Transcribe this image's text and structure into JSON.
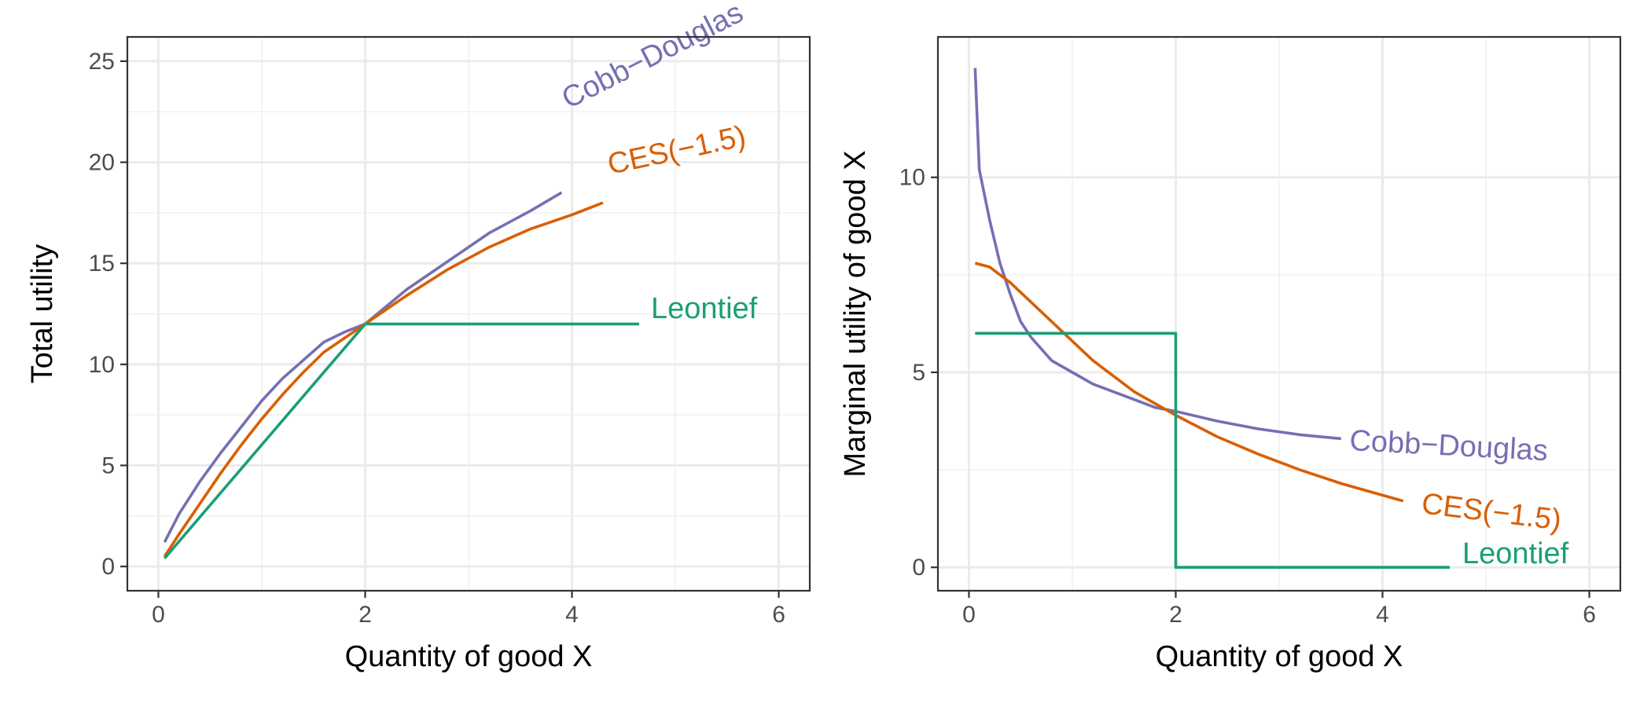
{
  "chart_data": [
    {
      "type": "line",
      "xlabel": "Quantity of good X",
      "ylabel": "Total utility",
      "xlim": [
        -0.3,
        6.3
      ],
      "ylim": [
        -1.2,
        26.2
      ],
      "x_ticks": [
        0,
        2,
        4,
        6
      ],
      "x_tick_labels": [
        "0",
        "2",
        "4",
        "6"
      ],
      "y_ticks": [
        0,
        5,
        10,
        15,
        20,
        25
      ],
      "y_tick_labels": [
        "0",
        "5",
        "10",
        "15",
        "20",
        "25"
      ],
      "grid": true,
      "legend": "direct labels at line ends",
      "series": [
        {
          "name": "Cobb−Douglas",
          "color": "#7570b3",
          "label_angle": -27,
          "points": [
            [
              0.06,
              1.2
            ],
            [
              0.2,
              2.6
            ],
            [
              0.4,
              4.2
            ],
            [
              0.6,
              5.6
            ],
            [
              0.8,
              6.9
            ],
            [
              1.0,
              8.2
            ],
            [
              1.2,
              9.3
            ],
            [
              1.4,
              10.2
            ],
            [
              1.6,
              11.1
            ],
            [
              1.8,
              11.6
            ],
            [
              2.0,
              12.0
            ],
            [
              2.4,
              13.7
            ],
            [
              2.8,
              15.1
            ],
            [
              3.2,
              16.5
            ],
            [
              3.6,
              17.6
            ],
            [
              3.9,
              18.5
            ]
          ]
        },
        {
          "name": "CES(−1.5)",
          "color": "#d95f02",
          "label_angle": -12,
          "points": [
            [
              0.06,
              0.5
            ],
            [
              0.2,
              1.6
            ],
            [
              0.4,
              3.1
            ],
            [
              0.6,
              4.6
            ],
            [
              0.8,
              6.0
            ],
            [
              1.0,
              7.3
            ],
            [
              1.2,
              8.5
            ],
            [
              1.4,
              9.6
            ],
            [
              1.6,
              10.6
            ],
            [
              1.8,
              11.3
            ],
            [
              2.0,
              12.0
            ],
            [
              2.4,
              13.4
            ],
            [
              2.8,
              14.7
            ],
            [
              3.2,
              15.8
            ],
            [
              3.6,
              16.7
            ],
            [
              4.0,
              17.4
            ],
            [
              4.3,
              18.0
            ]
          ]
        },
        {
          "name": "Leontief",
          "color": "#1b9e77",
          "label_angle": 0,
          "points": [
            [
              0.06,
              0.4
            ],
            [
              2.0,
              12.0
            ],
            [
              4.65,
              12.0
            ]
          ]
        }
      ]
    },
    {
      "type": "line",
      "xlabel": "Quantity of good X",
      "ylabel": "Marginal utility of good X",
      "xlim": [
        -0.3,
        6.3
      ],
      "ylim": [
        -0.6,
        13.6
      ],
      "x_ticks": [
        0,
        2,
        4,
        6
      ],
      "x_tick_labels": [
        "0",
        "2",
        "4",
        "6"
      ],
      "y_ticks": [
        0,
        5,
        10
      ],
      "y_tick_labels": [
        "0",
        "5",
        "10"
      ],
      "grid": true,
      "legend": "direct labels at line ends",
      "series": [
        {
          "name": "Cobb−Douglas",
          "color": "#7570b3",
          "label_angle": 3,
          "points": [
            [
              0.06,
              12.8
            ],
            [
              0.1,
              10.2
            ],
            [
              0.2,
              8.9
            ],
            [
              0.3,
              7.8
            ],
            [
              0.4,
              7.0
            ],
            [
              0.5,
              6.3
            ],
            [
              0.6,
              5.9
            ],
            [
              0.8,
              5.3
            ],
            [
              1.0,
              5.0
            ],
            [
              1.2,
              4.7
            ],
            [
              1.4,
              4.5
            ],
            [
              1.6,
              4.3
            ],
            [
              1.8,
              4.1
            ],
            [
              2.0,
              4.0
            ],
            [
              2.4,
              3.75
            ],
            [
              2.8,
              3.55
            ],
            [
              3.2,
              3.4
            ],
            [
              3.6,
              3.3
            ]
          ]
        },
        {
          "name": "CES(−1.5)",
          "color": "#d95f02",
          "label_angle": 7,
          "points": [
            [
              0.06,
              7.8
            ],
            [
              0.2,
              7.7
            ],
            [
              0.4,
              7.3
            ],
            [
              0.6,
              6.8
            ],
            [
              0.8,
              6.3
            ],
            [
              1.0,
              5.8
            ],
            [
              1.2,
              5.3
            ],
            [
              1.4,
              4.9
            ],
            [
              1.6,
              4.5
            ],
            [
              1.8,
              4.2
            ],
            [
              2.0,
              3.9
            ],
            [
              2.4,
              3.35
            ],
            [
              2.8,
              2.9
            ],
            [
              3.2,
              2.5
            ],
            [
              3.6,
              2.15
            ],
            [
              4.0,
              1.85
            ],
            [
              4.2,
              1.7
            ]
          ]
        },
        {
          "name": "Leontief",
          "color": "#1b9e77",
          "label_angle": 0,
          "points": [
            [
              0.06,
              6.0
            ],
            [
              2.0,
              6.0
            ],
            [
              2.0,
              0.0
            ],
            [
              4.65,
              0.0
            ]
          ]
        }
      ]
    }
  ]
}
